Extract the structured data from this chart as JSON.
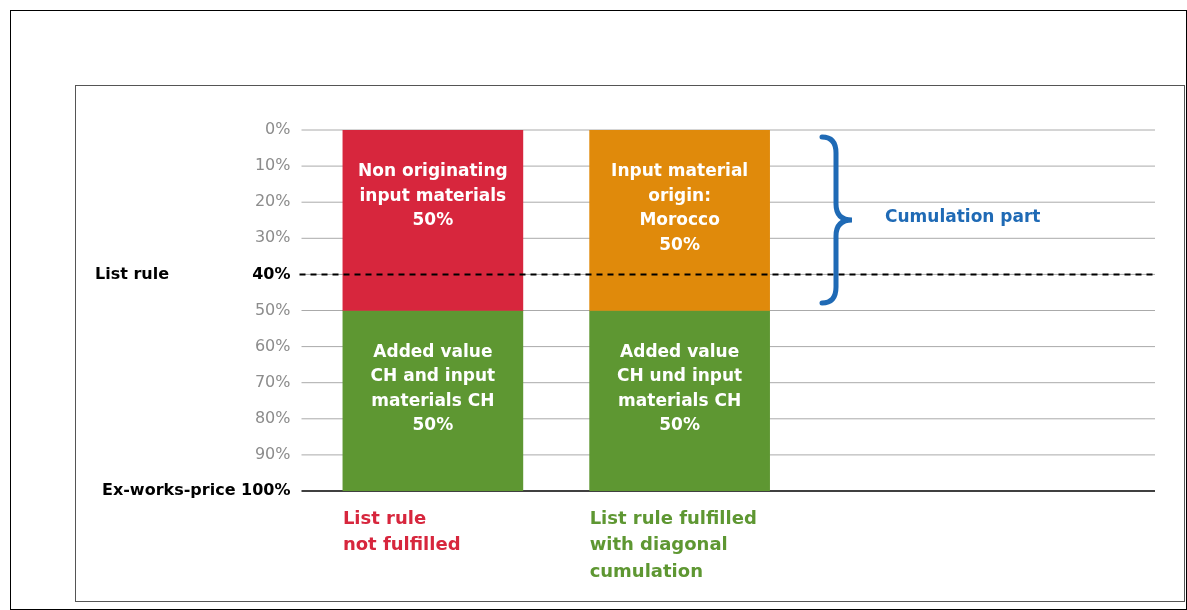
{
  "chart_data": {
    "type": "bar",
    "stacked": true,
    "categories": [
      "List rule\nnot fulfilled",
      "List rule fulfilled\nwith diagonal\ncumulation"
    ],
    "series": [
      {
        "colors": [
          "#d7263d",
          "#e08a0b"
        ],
        "values": [
          50,
          50
        ],
        "value_labels": [
          "Non originating\ninput materials\n50%",
          "Input material\norigin:\nMorocco\n50%"
        ]
      },
      {
        "colors": [
          "#5e9732",
          "#5e9732"
        ],
        "values": [
          50,
          50
        ],
        "value_labels": [
          "Added value\nCH and input\nmaterials CH\n50%",
          "Added value\nCH und input\nmaterials CH\n50%"
        ]
      }
    ],
    "ylim": [
      100,
      0
    ],
    "yticks": [
      {
        "value": 0,
        "label": "0%"
      },
      {
        "value": 10,
        "label": "10%"
      },
      {
        "value": 20,
        "label": "20%"
      },
      {
        "value": 30,
        "label": "30%"
      },
      {
        "value": 40,
        "label": "40%"
      },
      {
        "value": 50,
        "label": "50%"
      },
      {
        "value": 60,
        "label": "60%"
      },
      {
        "value": 70,
        "label": "70%"
      },
      {
        "value": 80,
        "label": "80%"
      },
      {
        "value": 90,
        "label": "90%"
      },
      {
        "value": 100,
        "label": "Ex-works-price 100%"
      }
    ],
    "grid": "y",
    "legend": false,
    "ref_lines": [
      {
        "axis": "y",
        "value": 40,
        "label": "List rule",
        "color": "#000000",
        "line_style": "dashed"
      }
    ],
    "annotations": [
      "Cumulation part"
    ]
  }
}
